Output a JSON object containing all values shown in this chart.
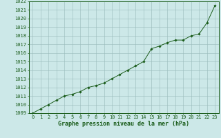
{
  "x": [
    0,
    1,
    2,
    3,
    4,
    5,
    6,
    7,
    8,
    9,
    10,
    11,
    12,
    13,
    14,
    15,
    16,
    17,
    18,
    19,
    20,
    21,
    22,
    23
  ],
  "y": [
    1009.0,
    1009.5,
    1010.0,
    1010.5,
    1011.0,
    1011.2,
    1011.5,
    1012.0,
    1012.2,
    1012.5,
    1013.0,
    1013.5,
    1014.0,
    1014.5,
    1015.0,
    1016.5,
    1016.8,
    1017.2,
    1017.5,
    1017.5,
    1018.0,
    1018.2,
    1019.5,
    1021.5
  ],
  "line_color": "#1a5c1a",
  "marker": "D",
  "marker_size": 1.8,
  "bg_color": "#cce8e8",
  "grid_color": "#99bbbb",
  "xlabel": "Graphe pression niveau de la mer (hPa)",
  "xlabel_color": "#1a5c1a",
  "tick_color": "#1a5c1a",
  "ylim_min": 1009,
  "ylim_max": 1022,
  "xlim_min": -0.5,
  "xlim_max": 23.5,
  "ytick_step": 1,
  "xtick_labels": [
    "0",
    "1",
    "2",
    "3",
    "4",
    "5",
    "6",
    "7",
    "8",
    "9",
    "10",
    "11",
    "12",
    "13",
    "14",
    "15",
    "16",
    "17",
    "18",
    "19",
    "20",
    "21",
    "22",
    "23"
  ]
}
